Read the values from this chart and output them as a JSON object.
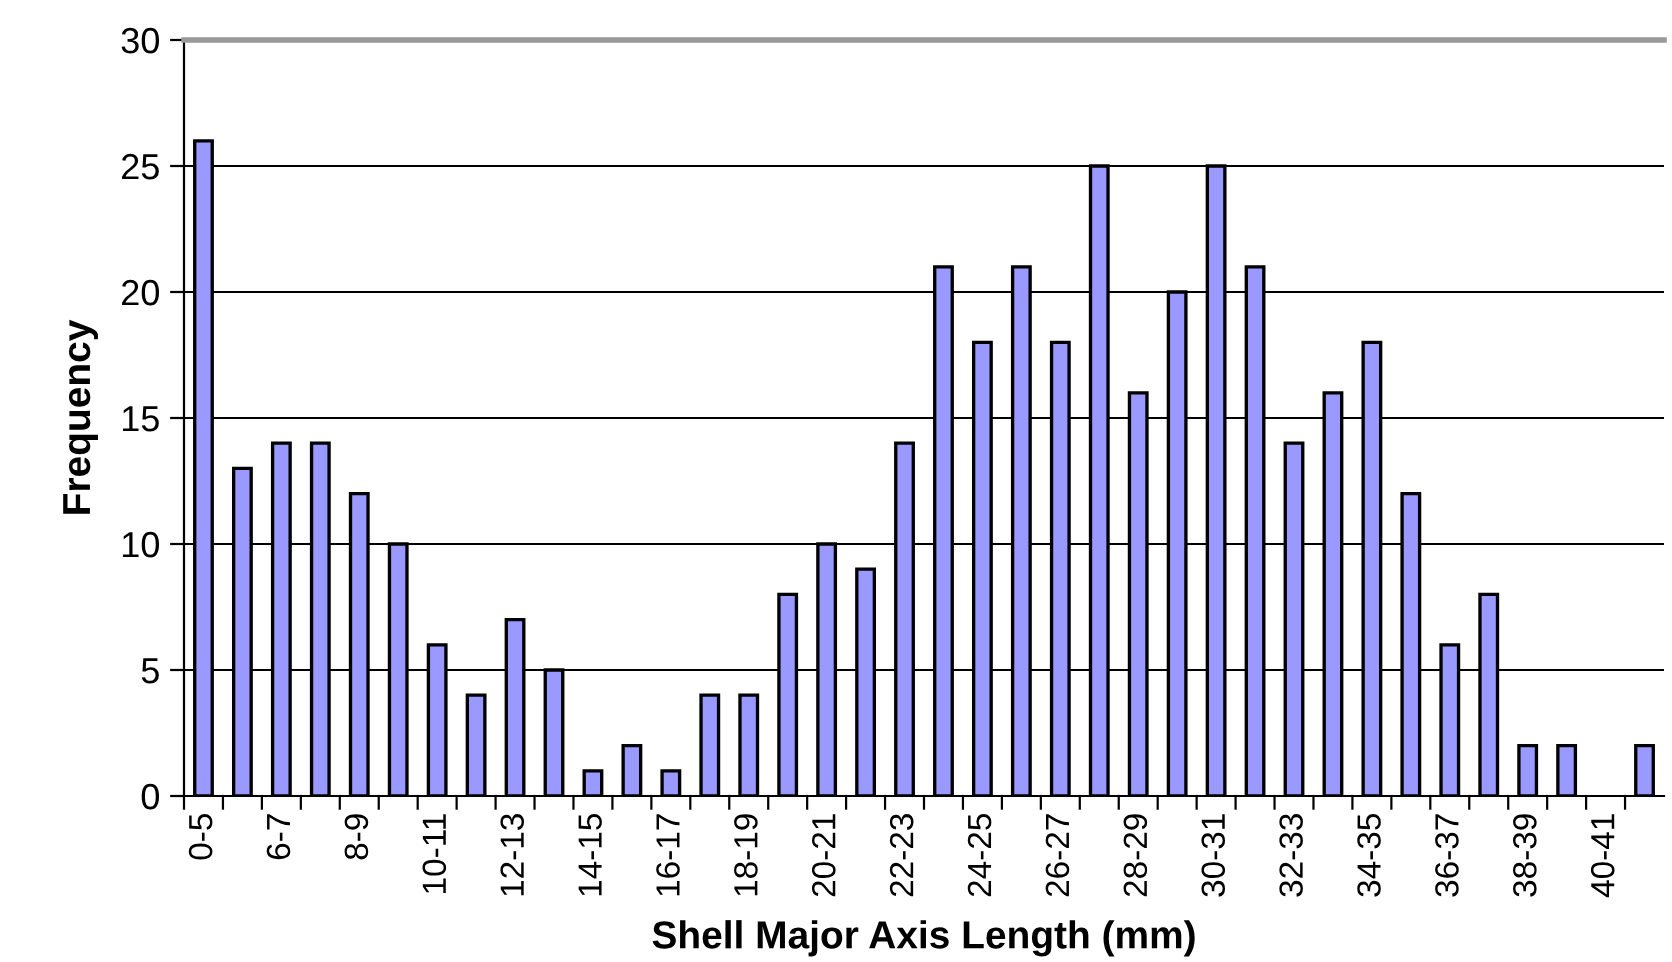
{
  "chart_data": {
    "type": "bar",
    "xlabel": "Shell Major Axis Length (mm)",
    "ylabel": "Frequency",
    "categories": [
      "0-5",
      null,
      "6-7",
      null,
      "8-9",
      null,
      "10-11",
      null,
      "12-13",
      null,
      "14-15",
      null,
      "16-17",
      null,
      "18-19",
      null,
      "20-21",
      null,
      "22-23",
      null,
      "24-25",
      null,
      "26-27",
      null,
      "28-29",
      null,
      "30-31",
      null,
      "32-33",
      null,
      "34-35",
      null,
      "36-37",
      null,
      "38-39",
      null,
      "40-41",
      null
    ],
    "values": [
      26,
      13,
      14,
      14,
      12,
      10,
      6,
      4,
      7,
      5,
      1,
      2,
      1,
      4,
      4,
      8,
      10,
      9,
      14,
      21,
      18,
      21,
      18,
      25,
      16,
      20,
      25,
      21,
      14,
      16,
      18,
      12,
      6,
      8,
      2,
      2,
      0,
      2
    ],
    "color": "#9999ff",
    "ylim": [
      0,
      30
    ],
    "yticks": [
      0,
      5,
      10,
      15,
      20,
      25,
      30
    ],
    "grid": "y",
    "legend": false
  }
}
